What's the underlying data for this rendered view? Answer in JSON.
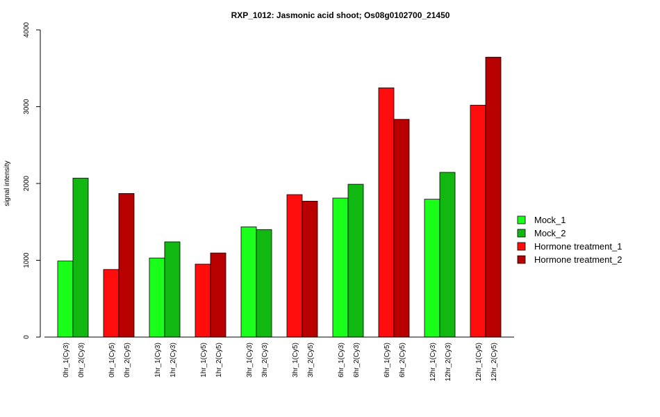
{
  "chart_data": {
    "type": "bar",
    "title": "RXP_1012: Jasmonic acid shoot; Os08g0102700_21450",
    "ylabel": "signal intensity",
    "xlabel": "",
    "ylim": [
      0,
      4000
    ],
    "yticks": [
      0,
      1000,
      2000,
      3000,
      4000
    ],
    "grid": false,
    "legend_position": "right",
    "series_colors": {
      "Mock_1": "#1aff1a",
      "Mock_2": "#11b811",
      "Hormone treatment_1": "#ff0d0d",
      "Hormone treatment_2": "#b80000"
    },
    "legend": [
      "Mock_1",
      "Mock_2",
      "Hormone treatment_1",
      "Hormone treatment_2"
    ],
    "bars": [
      {
        "label": "0hr_1(Cy3)",
        "value": 990,
        "series": "Mock_1"
      },
      {
        "label": "0hr_2(Cy3)",
        "value": 2070,
        "series": "Mock_2"
      },
      {
        "label": "0hr_1(Cy5)",
        "value": 880,
        "series": "Hormone treatment_1"
      },
      {
        "label": "0hr_2(Cy5)",
        "value": 1870,
        "series": "Hormone treatment_2"
      },
      {
        "label": "1hr_1(Cy3)",
        "value": 1030,
        "series": "Mock_1"
      },
      {
        "label": "1hr_2(Cy3)",
        "value": 1240,
        "series": "Mock_2"
      },
      {
        "label": "1hr_1(Cy5)",
        "value": 950,
        "series": "Hormone treatment_1"
      },
      {
        "label": "1hr_2(Cy5)",
        "value": 1095,
        "series": "Hormone treatment_2"
      },
      {
        "label": "3hr_1(Cy3)",
        "value": 1435,
        "series": "Mock_1"
      },
      {
        "label": "3hr_2(Cy3)",
        "value": 1400,
        "series": "Mock_2"
      },
      {
        "label": "3hr_1(Cy5)",
        "value": 1855,
        "series": "Hormone treatment_1"
      },
      {
        "label": "3hr_2(Cy5)",
        "value": 1770,
        "series": "Hormone treatment_2"
      },
      {
        "label": "6hr_1(Cy3)",
        "value": 1810,
        "series": "Mock_1"
      },
      {
        "label": "6hr_2(Cy3)",
        "value": 1990,
        "series": "Mock_2"
      },
      {
        "label": "6hr_1(Cy5)",
        "value": 3245,
        "series": "Hormone treatment_1"
      },
      {
        "label": "6hr_2(Cy5)",
        "value": 2835,
        "series": "Hormone treatment_2"
      },
      {
        "label": "12hr_1(Cy3)",
        "value": 1795,
        "series": "Mock_1"
      },
      {
        "label": "12hr_2(Cy3)",
        "value": 2145,
        "series": "Mock_2"
      },
      {
        "label": "12hr_1(Cy5)",
        "value": 3020,
        "series": "Hormone treatment_1"
      },
      {
        "label": "12hr_2(Cy5)",
        "value": 3645,
        "series": "Hormone treatment_2"
      }
    ]
  }
}
